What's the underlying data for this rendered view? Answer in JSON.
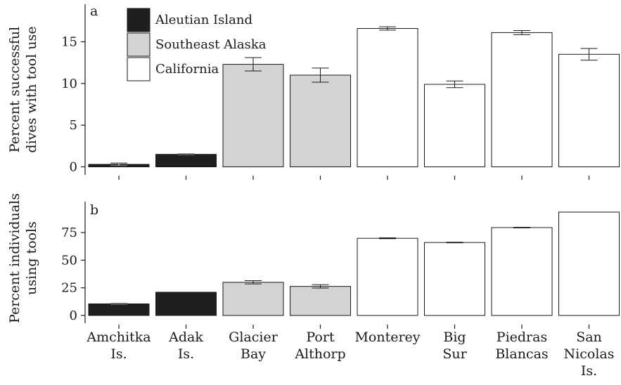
{
  "chart_data": [
    {
      "type": "bar",
      "panel_label": "a",
      "ylabel_lines": [
        "Percent successful",
        "dives with tool use"
      ],
      "ylim": [
        0,
        17.5
      ],
      "yticks": [
        0,
        5,
        10,
        15
      ],
      "grid": false,
      "legend": {
        "placement": "top-left",
        "entries": [
          {
            "label": "Aleutian Island",
            "color": "#1f1f1f"
          },
          {
            "label": "Southeast Alaska",
            "color": "#d3d3d3"
          },
          {
            "label": "California",
            "color": "#ffffff"
          }
        ]
      },
      "bars": [
        {
          "group": 0,
          "value": 0.3,
          "error": 0.15
        },
        {
          "group": 0,
          "value": 1.5,
          "error": 0.05
        },
        {
          "group": 1,
          "value": 12.3,
          "error": 0.8
        },
        {
          "group": 1,
          "value": 11.0,
          "error": 0.85
        },
        {
          "group": 2,
          "value": 16.6,
          "error": 0.2
        },
        {
          "group": 2,
          "value": 9.9,
          "error": 0.4
        },
        {
          "group": 2,
          "value": 16.1,
          "error": 0.25
        },
        {
          "group": 2,
          "value": 13.5,
          "error": 0.7
        }
      ]
    },
    {
      "type": "bar",
      "panel_label": "b",
      "ylabel_lines": [
        "Percent individuals",
        "using tools"
      ],
      "ylim": [
        0,
        95
      ],
      "yticks": [
        0,
        25,
        50,
        75
      ],
      "grid": false,
      "categories": [
        [
          "Amchitka",
          "Is."
        ],
        [
          "Adak",
          "Is."
        ],
        [
          "Glacier",
          "Bay"
        ],
        [
          "Port",
          "Althorp"
        ],
        [
          "Monterey"
        ],
        [
          "Big",
          "Sur"
        ],
        [
          "Piedras",
          "Blancas"
        ],
        [
          "San",
          "Nicolas",
          "Is."
        ]
      ],
      "bars": [
        {
          "group": 0,
          "value": 10.5,
          "error": 0.3
        },
        {
          "group": 0,
          "value": 21.0,
          "error": 0
        },
        {
          "group": 1,
          "value": 30.0,
          "error": 1.5
        },
        {
          "group": 1,
          "value": 26.3,
          "error": 1.5
        },
        {
          "group": 2,
          "value": 69.8,
          "error": 0.4
        },
        {
          "group": 2,
          "value": 66.0,
          "error": 0.3
        },
        {
          "group": 2,
          "value": 79.5,
          "error": 0.3
        },
        {
          "group": 2,
          "value": 93.5,
          "error": 0
        }
      ]
    }
  ]
}
